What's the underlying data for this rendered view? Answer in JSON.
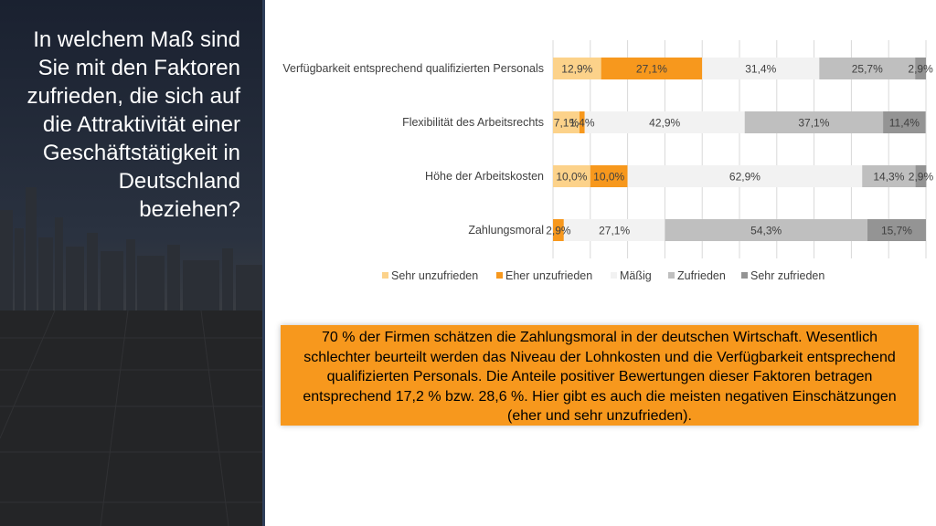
{
  "slide": {
    "title": "In welchem Maß sind Sie mit den Faktoren zufrieden, die sich auf die Attraktivität einer Geschäftstätigkeit in Deutschland beziehen?",
    "summary": "70 % der Firmen schätzen die Zahlungsmoral in der deutschen Wirtschaft. Wesentlich schlechter beurteilt werden das Niveau der Lohnkosten und die Verfügbarkeit entsprechend qualifizierten Personals. Die Anteile positiver Bewertungen dieser Faktoren betragen entsprechend 17,2 % bzw. 28,6 %.  Hier gibt es auch die meisten negativen Einschätzungen (eher und sehr unzufrieden)."
  },
  "chart_data": {
    "type": "bar",
    "orientation": "horizontal",
    "stacked": true,
    "categories": [
      "Verfügbarkeit entsprechend qualifizierten Personals",
      "Flexibilität des Arbeitsrechts",
      "Höhe der Arbeitskosten",
      "Zahlungsmoral"
    ],
    "series": [
      {
        "name": "Sehr unzufrieden",
        "color": "#fcd28a",
        "values": [
          12.9,
          7.1,
          10.0,
          0.0
        ],
        "labels": [
          "12,9%",
          "7,1%",
          "10,0%",
          ""
        ]
      },
      {
        "name": "Eher unzufrieden",
        "color": "#f7981d",
        "values": [
          27.1,
          1.4,
          10.0,
          2.9
        ],
        "labels": [
          "27,1%",
          "1,4%",
          "10,0%",
          "2,9%"
        ]
      },
      {
        "name": "Mäßig",
        "color": "#f2f2f2",
        "values": [
          31.4,
          42.9,
          62.9,
          27.1
        ],
        "labels": [
          "31,4%",
          "42,9%",
          "62,9%",
          "27,1%"
        ]
      },
      {
        "name": "Zufrieden",
        "color": "#bfbfbf",
        "values": [
          25.7,
          37.1,
          14.3,
          54.3
        ],
        "labels": [
          "25,7%",
          "37,1%",
          "14,3%",
          "54,3%"
        ]
      },
      {
        "name": "Sehr zufrieden",
        "color": "#949494",
        "values": [
          2.9,
          11.4,
          2.9,
          15.7
        ],
        "labels": [
          "2,9%",
          "11,4%",
          "2,9%",
          "15,7%"
        ]
      }
    ],
    "xlim": [
      0,
      100
    ],
    "gridlines": true,
    "legend": "bottom"
  }
}
